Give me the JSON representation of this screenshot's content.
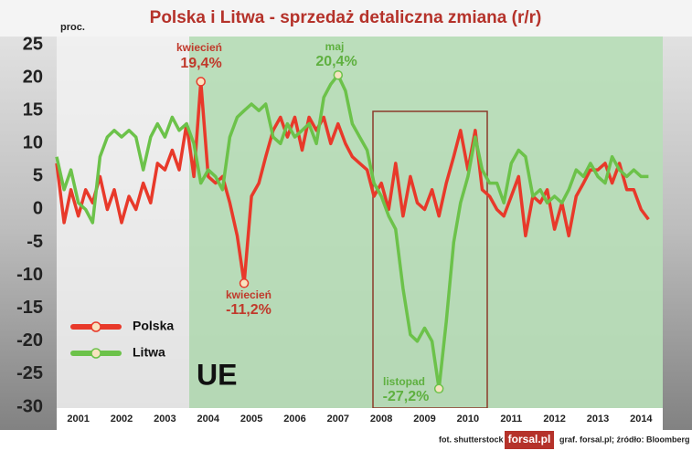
{
  "chart_data": {
    "type": "line",
    "title": "Polska i Litwa - sprzedaż detaliczna zmiana (r/r)",
    "y_label": "proc.",
    "x": [
      2001.0,
      2001.17,
      2001.33,
      2001.5,
      2001.67,
      2001.83,
      2002.0,
      2002.17,
      2002.33,
      2002.5,
      2002.67,
      2002.83,
      2003.0,
      2003.17,
      2003.33,
      2003.5,
      2003.67,
      2003.83,
      2004.0,
      2004.17,
      2004.33,
      2004.5,
      2004.67,
      2004.83,
      2005.0,
      2005.17,
      2005.33,
      2005.5,
      2005.67,
      2005.83,
      2006.0,
      2006.17,
      2006.33,
      2006.5,
      2006.67,
      2006.83,
      2007.0,
      2007.17,
      2007.33,
      2007.5,
      2007.67,
      2007.83,
      2008.0,
      2008.17,
      2008.33,
      2008.5,
      2008.67,
      2008.83,
      2009.0,
      2009.17,
      2009.33,
      2009.5,
      2009.67,
      2009.83,
      2010.0,
      2010.17,
      2010.33,
      2010.5,
      2010.67,
      2010.83,
      2011.0,
      2011.17,
      2011.33,
      2011.5,
      2011.67,
      2011.83,
      2012.0,
      2012.17,
      2012.33,
      2012.5,
      2012.67,
      2012.83,
      2013.0,
      2013.17,
      2013.33,
      2013.5,
      2013.67,
      2013.83,
      2014.0,
      2014.17,
      2014.33,
      2014.5,
      2014.67
    ],
    "series": [
      {
        "name": "Polska",
        "color": "#e8392a",
        "values": [
          7,
          -2,
          3,
          -1,
          3,
          1,
          5,
          0,
          3,
          -2,
          2,
          0,
          4,
          1,
          7,
          6,
          9,
          6,
          13,
          5,
          19.4,
          5,
          4,
          5,
          1,
          -4,
          -11.2,
          2,
          4,
          8,
          12,
          14,
          11,
          14,
          9,
          14,
          12,
          14,
          10,
          13,
          10,
          8,
          7,
          6,
          2,
          4,
          0,
          7,
          -1,
          5,
          1,
          0,
          3,
          -1,
          4,
          8,
          12,
          6,
          12,
          3,
          2,
          0,
          -1,
          2,
          5,
          -4,
          2,
          1,
          3,
          -3,
          1,
          -4,
          2,
          4,
          6,
          6,
          7,
          4,
          7,
          3,
          3,
          0,
          -1.5
        ]
      },
      {
        "name": "Litwa",
        "color": "#6cc24a",
        "values": [
          8,
          3,
          6,
          1,
          0,
          -2,
          8,
          11,
          12,
          11,
          12,
          11,
          6,
          11,
          13,
          11,
          14,
          12,
          13,
          10,
          4,
          6,
          5,
          3,
          11,
          14,
          15,
          16,
          15,
          16,
          11,
          10,
          13,
          11,
          12,
          13,
          10,
          17,
          19,
          20.4,
          18,
          13,
          11,
          9,
          4,
          2,
          -1,
          -3,
          -12,
          -19,
          -20,
          -18,
          -20,
          -27.2,
          -17,
          -5,
          1,
          5,
          11,
          6,
          4,
          4,
          1,
          7,
          9,
          8,
          2,
          3,
          1,
          2,
          1,
          3,
          6,
          5,
          7,
          5,
          4,
          8,
          6,
          5,
          6,
          5,
          5
        ]
      }
    ],
    "xlim": [
      2001,
      2015
    ],
    "xticks": [
      {
        "value": 2001.5,
        "label": "2001"
      },
      {
        "value": 2002.5,
        "label": "2002"
      },
      {
        "value": 2003.5,
        "label": "2003"
      },
      {
        "value": 2004.5,
        "label": "2004"
      },
      {
        "value": 2005.5,
        "label": "2005"
      },
      {
        "value": 2006.5,
        "label": "2006"
      },
      {
        "value": 2007.5,
        "label": "2007"
      },
      {
        "value": 2008.5,
        "label": "2008"
      },
      {
        "value": 2009.5,
        "label": "2009"
      },
      {
        "value": 2010.5,
        "label": "2010"
      },
      {
        "value": 2011.5,
        "label": "2011"
      },
      {
        "value": 2012.5,
        "label": "2012"
      },
      {
        "value": 2013.5,
        "label": "2013"
      },
      {
        "value": 2014.5,
        "label": "2014"
      }
    ],
    "ylim": [
      -30,
      25
    ],
    "yticks": [
      25,
      20,
      15,
      10,
      5,
      0,
      -5,
      -10,
      -15,
      -20,
      -25,
      -30
    ],
    "grid": false,
    "annotations": [
      "kwiecień",
      "19,4%",
      "kwiecień",
      "-11,2%",
      "maj",
      "20,4%",
      "listopad",
      "-27,2%",
      "UE"
    ],
    "footer": [
      "fot. shutterstock",
      "forsal.pl",
      "graf. forsal.pl;  źródło: Bloomberg"
    ]
  }
}
